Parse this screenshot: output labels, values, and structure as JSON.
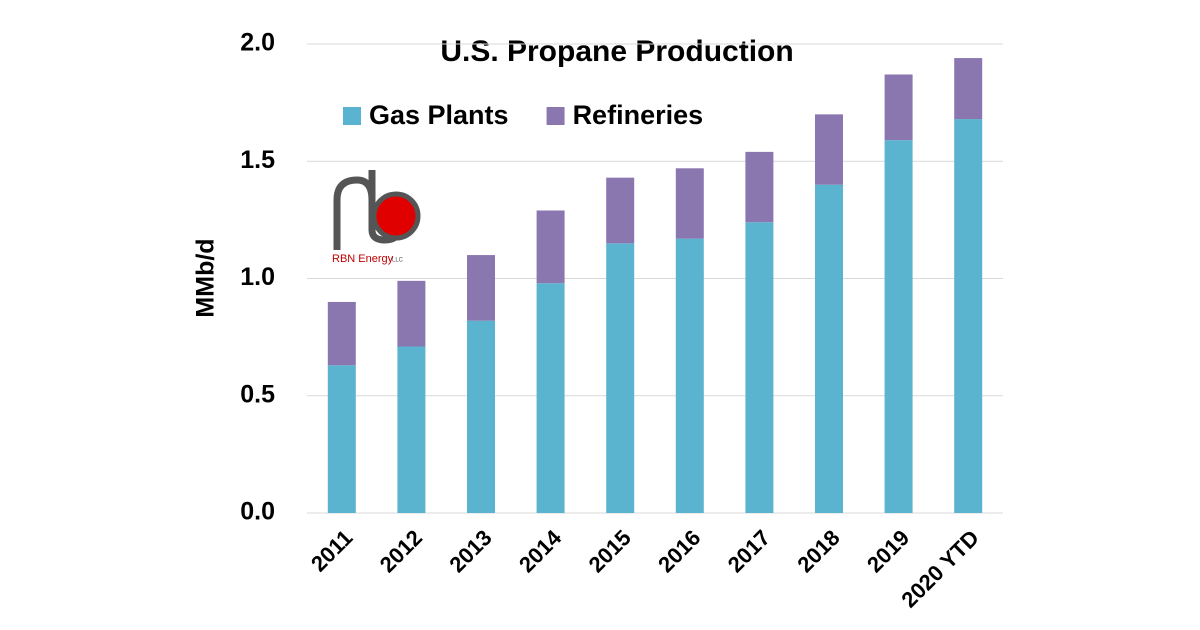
{
  "chart_data": {
    "type": "stacked_bar",
    "title": "U.S. Propane Production",
    "y_label": "MMb/d",
    "categories": [
      "2011",
      "2012",
      "2013",
      "2014",
      "2015",
      "2016",
      "2017",
      "2018",
      "2019",
      "2020 YTD"
    ],
    "series": [
      {
        "name": "Gas Plants",
        "color": "#5bb4cf",
        "values": [
          0.63,
          0.71,
          0.82,
          0.98,
          1.15,
          1.17,
          1.24,
          1.4,
          1.59,
          1.68
        ]
      },
      {
        "name": "Refineries",
        "color": "#8b77b0",
        "values": [
          0.27,
          0.28,
          0.28,
          0.31,
          0.28,
          0.3,
          0.3,
          0.3,
          0.28,
          0.26
        ]
      }
    ],
    "ylim": [
      0,
      2.0
    ],
    "yticks": [
      {
        "value": 0,
        "label": "0.0"
      },
      {
        "value": 0.5,
        "label": "0.5"
      },
      {
        "value": 1.0,
        "label": "1.0"
      },
      {
        "value": 1.5,
        "label": "1.5"
      },
      {
        "value": 2.0,
        "label": "2.0"
      }
    ],
    "grid": true,
    "legend": "top"
  },
  "logo": {
    "name": "RBN Energy",
    "suffix": "LLC"
  }
}
